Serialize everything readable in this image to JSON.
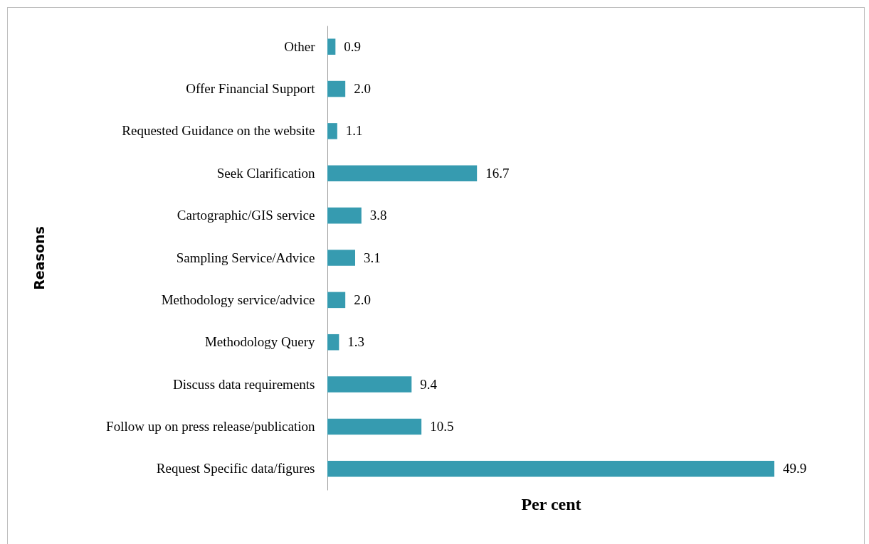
{
  "chart_data": {
    "type": "bar",
    "orientation": "horizontal",
    "xlabel": "Per cent",
    "ylabel": "Reasons",
    "categories": [
      "Other",
      "Offer Financial Support",
      "Requested Guidance on the website",
      "Seek Clarification",
      "Cartographic/GIS service",
      "Sampling Service/Advice",
      "Methodology service/advice",
      "Methodology Query",
      "Discuss data requirements",
      "Follow up on press release/publication",
      "Request Specific data/figures"
    ],
    "values": [
      0.9,
      2.0,
      1.1,
      16.7,
      3.8,
      3.1,
      2.0,
      1.3,
      9.4,
      10.5,
      49.9
    ],
    "color": "#369bb0",
    "value_labels": [
      "0.9",
      "2.0",
      "1.1",
      "16.7",
      "3.8",
      "3.1",
      "2.0",
      "1.3",
      "9.4",
      "10.5",
      "49.9"
    ]
  }
}
